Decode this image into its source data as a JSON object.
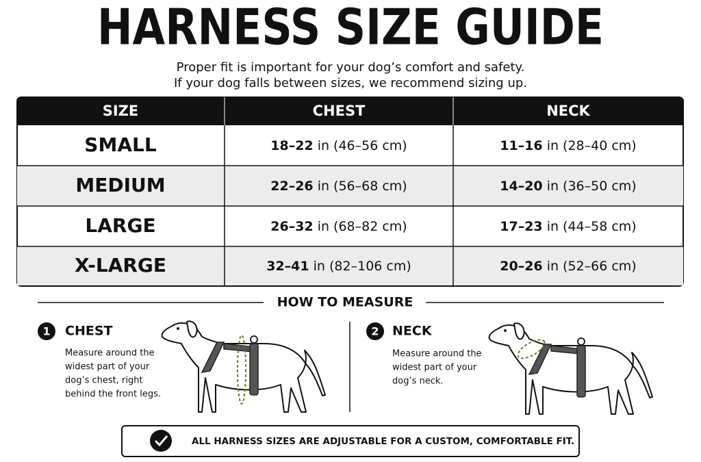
{
  "header": {
    "title": "HARNESS SIZE GUIDE",
    "subtitle_lines": [
      "Proper fit is important for your dog’s comfort and safety.",
      "If your dog falls between sizes, we recommend sizing up."
    ]
  },
  "table": {
    "headers": [
      "SIZE",
      "CHEST",
      "NECK"
    ],
    "rows": [
      [
        "SMALL",
        [
          "18–22",
          "in (46–56 cm)"
        ],
        [
          "11–16",
          "in (28–40 cm)"
        ]
      ],
      [
        "MEDIUM",
        [
          "22–26",
          "in (56–68 cm)"
        ],
        [
          "14–20",
          "in (36–50 cm)"
        ]
      ],
      [
        "LARGE",
        [
          "26–32",
          "in (68–82 cm)"
        ],
        [
          "17–23",
          "in (44–58 cm)"
        ]
      ],
      [
        "X-LARGE",
        [
          "32–41",
          "in (82–106 cm)"
        ],
        [
          "20–26",
          "in (52–66 cm)"
        ]
      ]
    ]
  },
  "how_to_measure": {
    "title": "HOW TO MEASURE",
    "steps": [
      {
        "number": "1",
        "label": "CHEST",
        "lines": [
          "Measure around the",
          "widest part of your",
          "dog’s chest, right",
          "behind the front legs."
        ]
      },
      {
        "number": "2",
        "label": "NECK",
        "lines": [
          "Measure around the",
          "widest part of your",
          "dog’s neck."
        ]
      }
    ]
  },
  "footer": {
    "note": "ALL HARNESS SIZES ARE ADJUSTABLE FOR A CUSTOM, COMFORTABLE FIT."
  }
}
